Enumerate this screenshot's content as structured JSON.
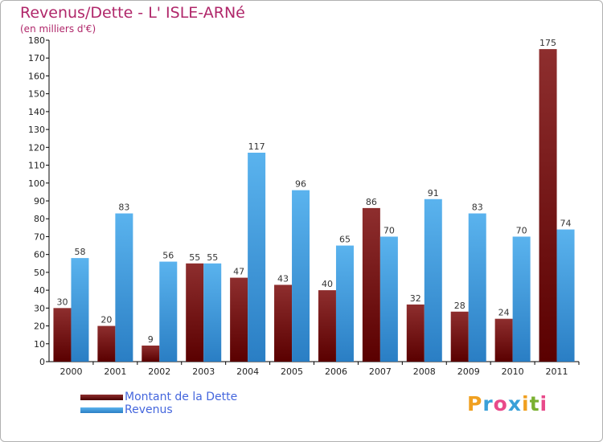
{
  "title": "Revenus/Dette - L' ISLE-ARNé",
  "subtitle": "(en milliers d'€)",
  "logo": {
    "text": "Proxiti",
    "letters": [
      {
        "ch": "P",
        "color": "#f0a020"
      },
      {
        "ch": "r",
        "color": "#3aa0d8"
      },
      {
        "ch": "o",
        "color": "#e84a8a"
      },
      {
        "ch": "x",
        "color": "#3aa0d8"
      },
      {
        "ch": "i",
        "color": "#f0a020"
      },
      {
        "ch": "t",
        "color": "#7ab030"
      },
      {
        "ch": "i",
        "color": "#e84a8a"
      }
    ]
  },
  "chart_data": {
    "type": "bar",
    "title": "Revenus/Dette - L' ISLE-ARNé",
    "subtitle": "(en milliers d'€)",
    "categories": [
      "2000",
      "2001",
      "2002",
      "2003",
      "2004",
      "2005",
      "2006",
      "2007",
      "2008",
      "2009",
      "2010",
      "2011"
    ],
    "series": [
      {
        "name": "Montant de la Dette",
        "color": "#7a1a1a",
        "values": [
          30,
          20,
          9,
          55,
          47,
          43,
          40,
          86,
          32,
          28,
          24,
          175
        ]
      },
      {
        "name": "Revenus",
        "color": "#3a9ae0",
        "values": [
          58,
          83,
          56,
          55,
          117,
          96,
          65,
          70,
          91,
          83,
          70,
          74
        ]
      }
    ],
    "ylim": [
      0,
      180
    ],
    "yticks": [
      0,
      10,
      20,
      30,
      40,
      50,
      60,
      70,
      80,
      90,
      100,
      110,
      120,
      130,
      140,
      150,
      160,
      170,
      180
    ],
    "grid": false,
    "legend": "bottom-left"
  }
}
